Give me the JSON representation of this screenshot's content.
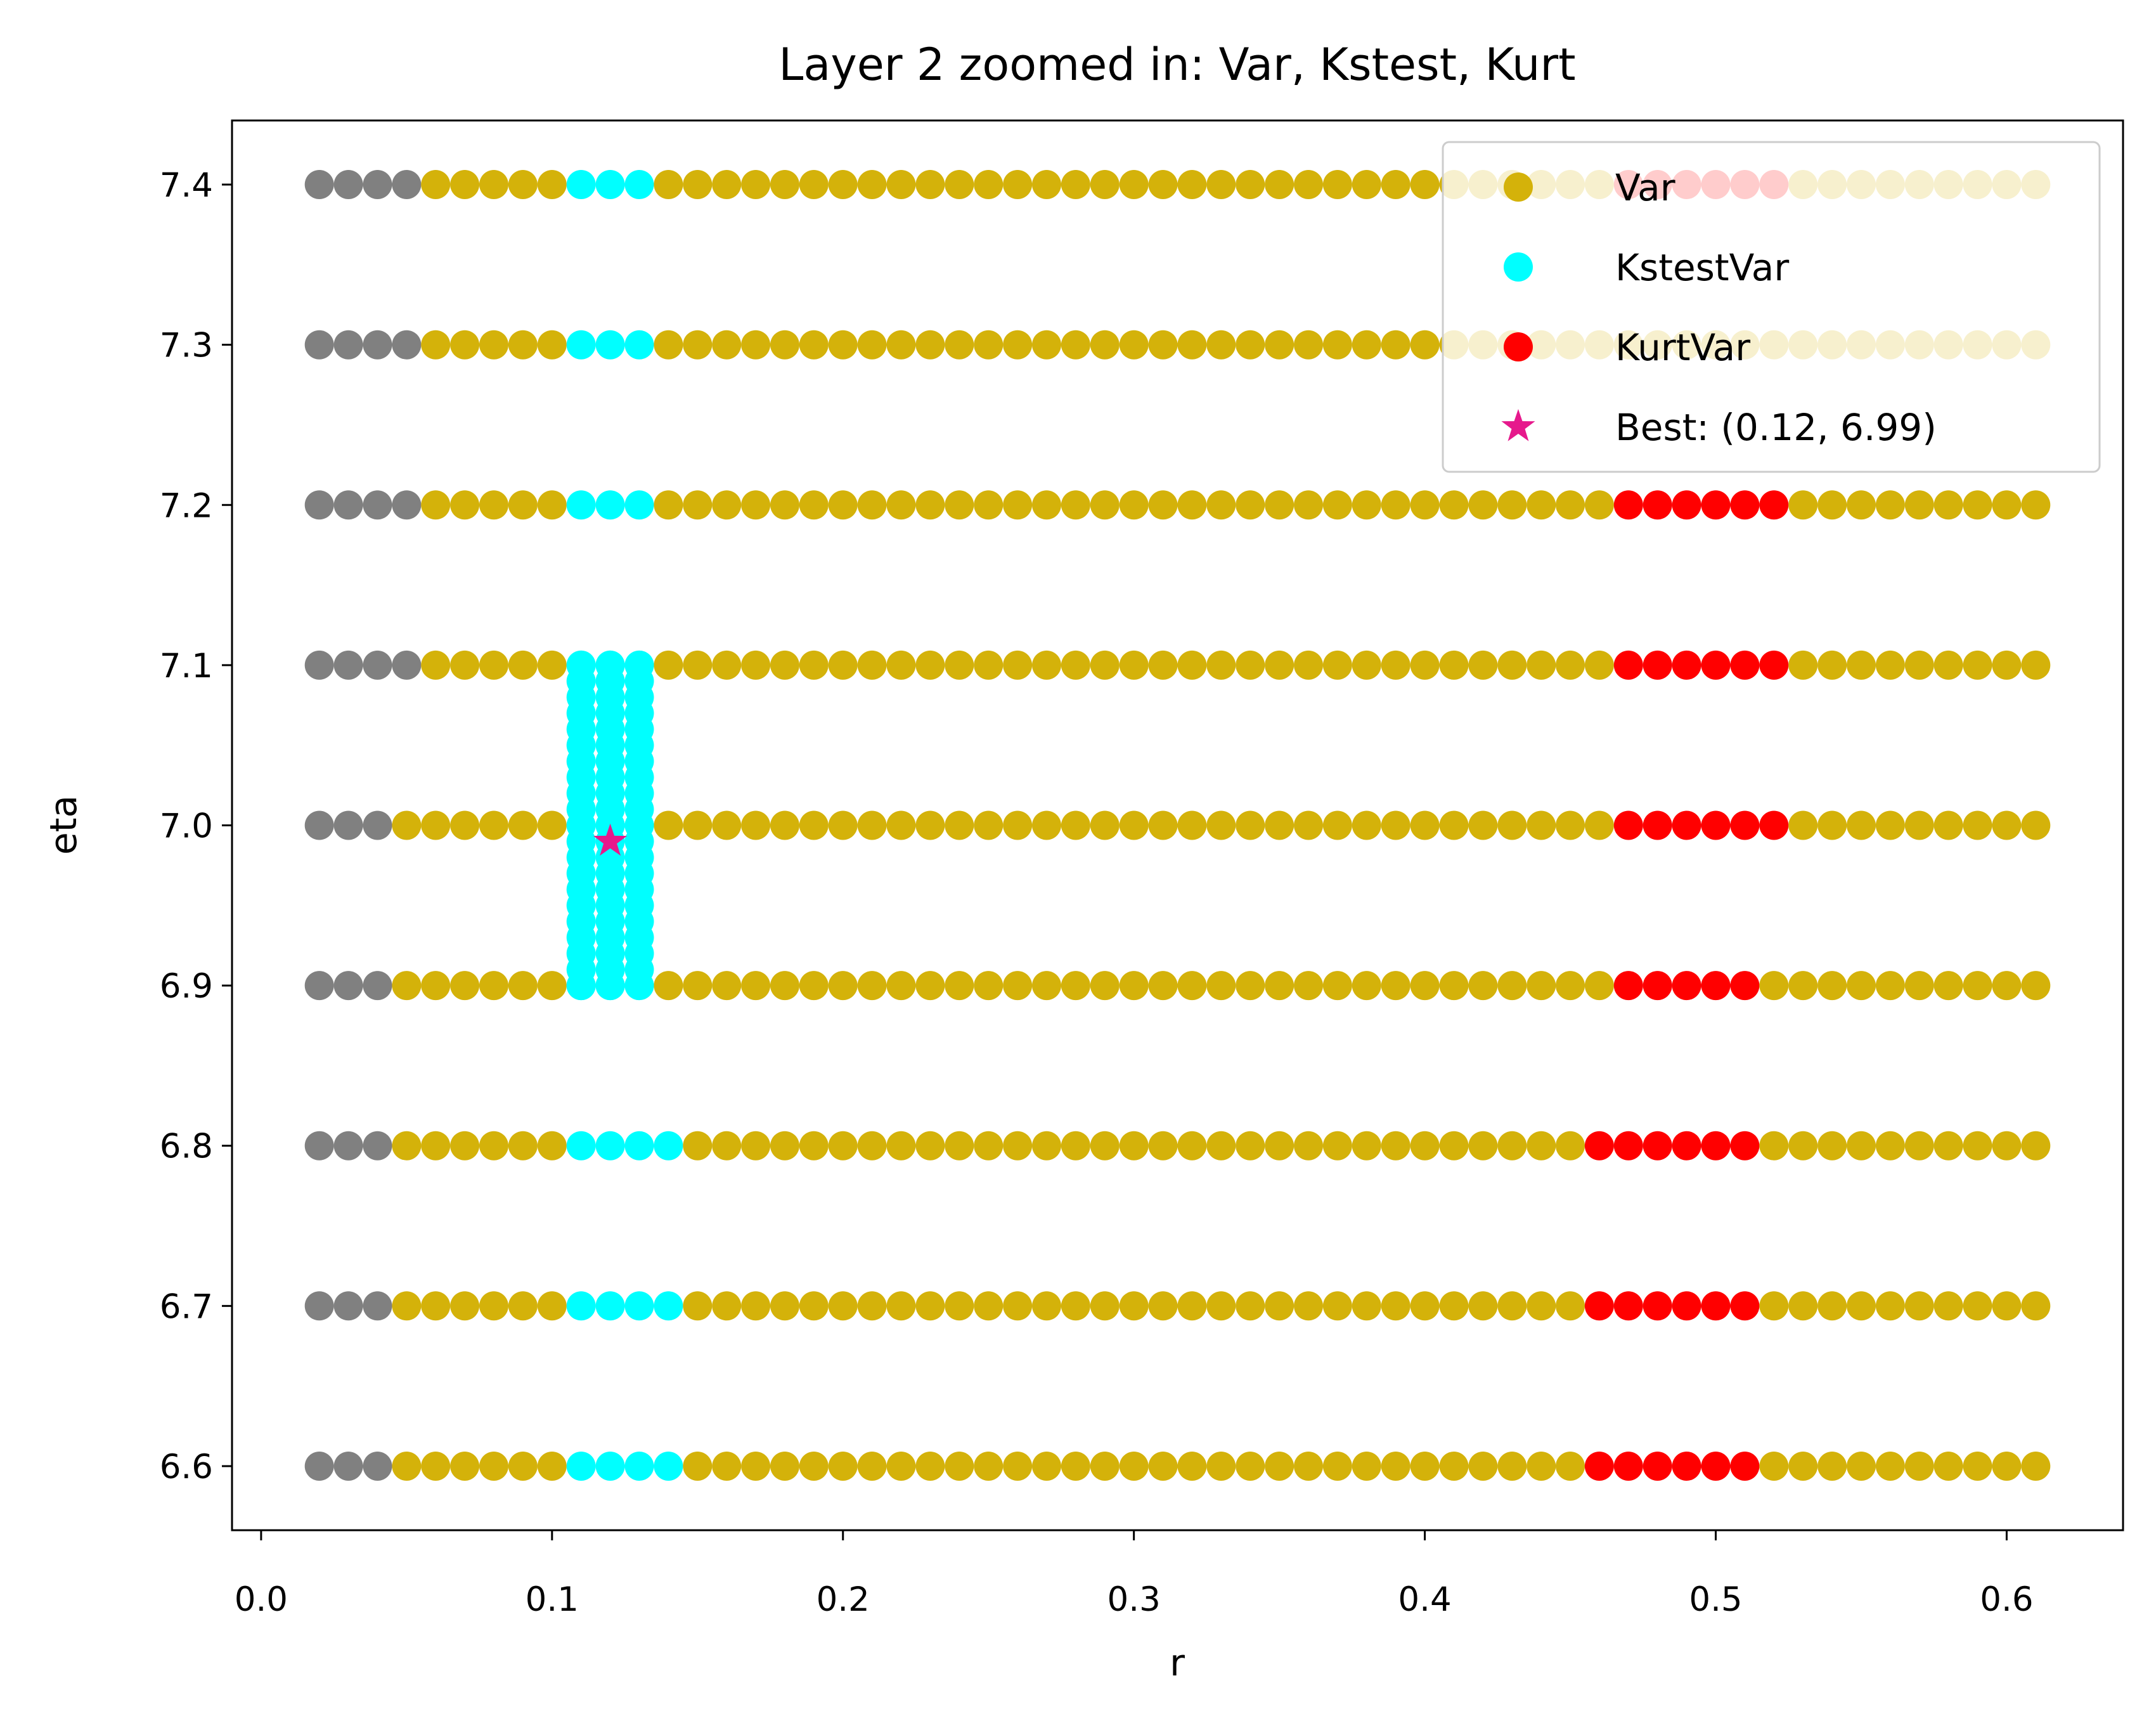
{
  "chart_data": {
    "type": "scatter",
    "title": "Layer 2 zoomed in: Var, Kstest, Kurt",
    "xlabel": "r",
    "ylabel": "eta",
    "xlim": [
      -0.01,
      0.64
    ],
    "ylim": [
      6.56,
      7.44
    ],
    "x_ticks": [
      0.0,
      0.1,
      0.2,
      0.3,
      0.4,
      0.5,
      0.6
    ],
    "x_tick_labels": [
      "0.0",
      "0.1",
      "0.2",
      "0.3",
      "0.4",
      "0.5",
      "0.6"
    ],
    "y_ticks": [
      6.6,
      6.7,
      6.8,
      6.9,
      7.0,
      7.1,
      7.2,
      7.3,
      7.4
    ],
    "y_tick_labels": [
      "6.6",
      "6.7",
      "6.8",
      "6.9",
      "7.0",
      "7.1",
      "7.2",
      "7.3",
      "7.4"
    ],
    "grid": false,
    "legend_position": "top-right",
    "r_grid": {
      "start": 0.02,
      "step": 0.01,
      "count": 60
    },
    "colors": {
      "excluded": "#808080",
      "Var": "#d4b20a",
      "KstestVar": "#00ffff",
      "KurtVar": "#ff0000",
      "Best": "#e6198c"
    },
    "rows": [
      {
        "eta": 7.4,
        "gray": [
          0.02,
          0.05
        ],
        "kstest": [
          0.11,
          0.13
        ],
        "kurt": [
          0.47,
          0.52
        ]
      },
      {
        "eta": 7.3,
        "gray": [
          0.02,
          0.05
        ],
        "kstest": [
          0.11,
          0.13
        ],
        "kurt": null
      },
      {
        "eta": 7.2,
        "gray": [
          0.02,
          0.05
        ],
        "kstest": [
          0.11,
          0.13
        ],
        "kurt": [
          0.47,
          0.52
        ]
      },
      {
        "eta": 7.1,
        "gray": [
          0.02,
          0.05
        ],
        "kstest": [
          0.11,
          0.13
        ],
        "kurt": [
          0.47,
          0.52
        ]
      },
      {
        "eta": 7.0,
        "gray": [
          0.02,
          0.04
        ],
        "kstest": [
          0.11,
          0.13
        ],
        "kurt": [
          0.47,
          0.52
        ]
      },
      {
        "eta": 6.9,
        "gray": [
          0.02,
          0.04
        ],
        "kstest": [
          0.11,
          0.13
        ],
        "kurt": [
          0.47,
          0.51
        ]
      },
      {
        "eta": 6.8,
        "gray": [
          0.02,
          0.04
        ],
        "kstest": [
          0.11,
          0.14
        ],
        "kurt": [
          0.46,
          0.51
        ]
      },
      {
        "eta": 6.7,
        "gray": [
          0.02,
          0.04
        ],
        "kstest": [
          0.11,
          0.14
        ],
        "kurt": [
          0.46,
          0.51
        ]
      },
      {
        "eta": 6.6,
        "gray": [
          0.02,
          0.04
        ],
        "kstest": [
          0.11,
          0.14
        ],
        "kurt": [
          0.46,
          0.51
        ]
      }
    ],
    "kstest_dense_block": {
      "r": [
        0.11,
        0.12,
        0.13
      ],
      "eta_min": 6.9,
      "eta_max": 7.1,
      "eta_step": 0.01
    },
    "best": {
      "r": 0.12,
      "eta": 6.99
    },
    "legend": [
      {
        "label": "Var",
        "marker": "circle",
        "color": "#d4b20a"
      },
      {
        "label": "KstestVar",
        "marker": "circle",
        "color": "#00ffff"
      },
      {
        "label": "KurtVar",
        "marker": "circle",
        "color": "#ff0000"
      },
      {
        "label": "Best: (0.12, 6.99)",
        "marker": "star",
        "color": "#e6198c"
      }
    ]
  }
}
